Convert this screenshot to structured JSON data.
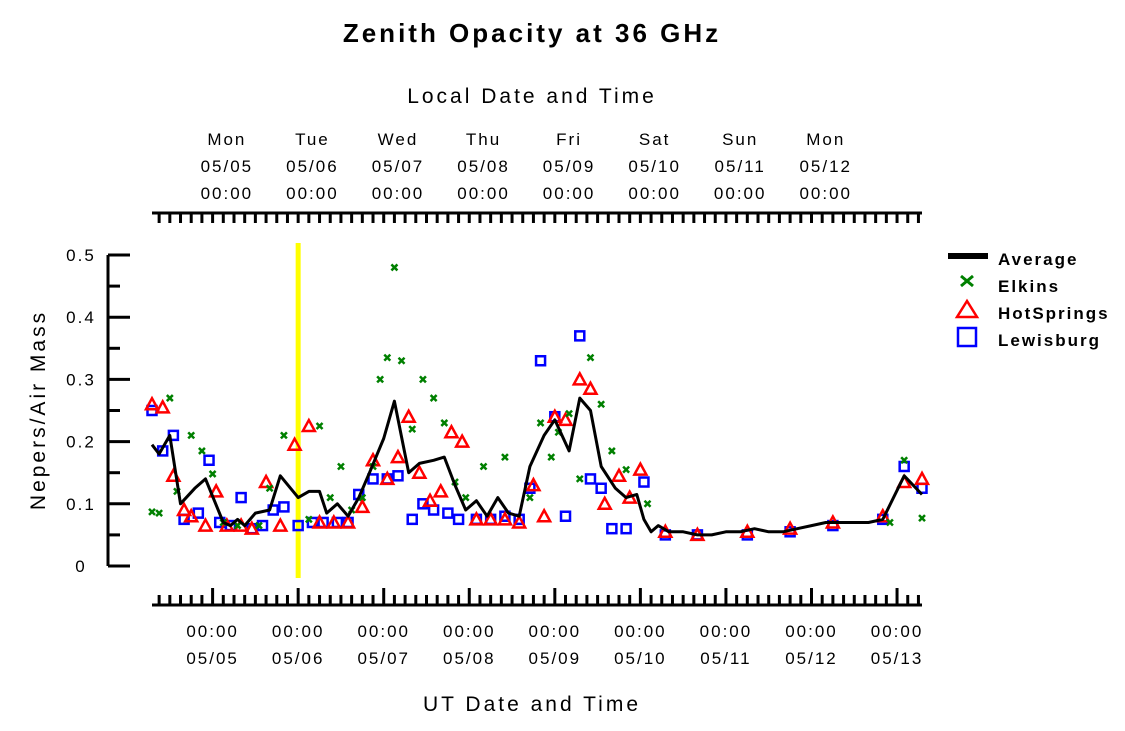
{
  "chart_data": {
    "type": "line",
    "title": "Zenith Opacity at 36 GHz",
    "top_axis_label": "Local Date and Time",
    "xlabel": "UT Date and Time",
    "ylabel": "Nepers/Air Mass",
    "ylim": [
      0,
      0.5
    ],
    "y_ticks": [
      "0",
      "0.1",
      "0.2",
      "0.3",
      "0.4",
      "0.5"
    ],
    "xlim_ut": [
      "2003-05-04T07:00",
      "2003-05-13T07:00"
    ],
    "top_ticks": [
      {
        "day": "Mon",
        "date": "05/05",
        "time": "00:00"
      },
      {
        "day": "Tue",
        "date": "05/06",
        "time": "00:00"
      },
      {
        "day": "Wed",
        "date": "05/07",
        "time": "00:00"
      },
      {
        "day": "Thu",
        "date": "05/08",
        "time": "00:00"
      },
      {
        "day": "Fri",
        "date": "05/09",
        "time": "00:00"
      },
      {
        "day": "Sat",
        "date": "05/10",
        "time": "00:00"
      },
      {
        "day": "Sun",
        "date": "05/11",
        "time": "00:00"
      },
      {
        "day": "Mon",
        "date": "05/12",
        "time": "00:00"
      }
    ],
    "bottom_ticks": [
      {
        "time": "00:00",
        "date": "05/05"
      },
      {
        "time": "00:00",
        "date": "05/06"
      },
      {
        "time": "00:00",
        "date": "05/07"
      },
      {
        "time": "00:00",
        "date": "05/08"
      },
      {
        "time": "00:00",
        "date": "05/09"
      },
      {
        "time": "00:00",
        "date": "05/10"
      },
      {
        "time": "00:00",
        "date": "05/11"
      },
      {
        "time": "00:00",
        "date": "05/12"
      },
      {
        "time": "00:00",
        "date": "05/13"
      }
    ],
    "marker_line": {
      "x": "2003-05-06T00:00",
      "color": "#ffff00"
    },
    "legend_placement": "right",
    "series": [
      {
        "name": "Average",
        "marker": "line",
        "color": "#000000",
        "points": [
          [
            "2003-05-04T07:00",
            0.195
          ],
          [
            "2003-05-04T09:00",
            0.18
          ],
          [
            "2003-05-04T12:00",
            0.21
          ],
          [
            "2003-05-04T15:00",
            0.1
          ],
          [
            "2003-05-04T19:00",
            0.125
          ],
          [
            "2003-05-04T22:00",
            0.14
          ],
          [
            "2003-05-05T03:00",
            0.07
          ],
          [
            "2003-05-05T05:00",
            0.065
          ],
          [
            "2003-05-05T07:00",
            0.075
          ],
          [
            "2003-05-05T09:00",
            0.065
          ],
          [
            "2003-05-05T12:00",
            0.085
          ],
          [
            "2003-05-05T16:00",
            0.09
          ],
          [
            "2003-05-05T19:00",
            0.145
          ],
          [
            "2003-05-06T00:00",
            0.11
          ],
          [
            "2003-05-06T03:00",
            0.12
          ],
          [
            "2003-05-06T06:00",
            0.12
          ],
          [
            "2003-05-06T08:00",
            0.085
          ],
          [
            "2003-05-06T11:00",
            0.1
          ],
          [
            "2003-05-06T14:00",
            0.08
          ],
          [
            "2003-05-06T17:00",
            0.11
          ],
          [
            "2003-05-06T20:00",
            0.15
          ],
          [
            "2003-05-07T00:00",
            0.205
          ],
          [
            "2003-05-07T03:00",
            0.265
          ],
          [
            "2003-05-07T07:00",
            0.15
          ],
          [
            "2003-05-07T10:00",
            0.165
          ],
          [
            "2003-05-07T14:00",
            0.17
          ],
          [
            "2003-05-07T17:00",
            0.175
          ],
          [
            "2003-05-07T20:00",
            0.13
          ],
          [
            "2003-05-07T23:00",
            0.09
          ],
          [
            "2003-05-08T02:00",
            0.105
          ],
          [
            "2003-05-08T05:00",
            0.08
          ],
          [
            "2003-05-08T08:00",
            0.11
          ],
          [
            "2003-05-08T11:00",
            0.085
          ],
          [
            "2003-05-08T14:00",
            0.08
          ],
          [
            "2003-05-08T17:00",
            0.16
          ],
          [
            "2003-05-08T21:00",
            0.21
          ],
          [
            "2003-05-09T00:00",
            0.235
          ],
          [
            "2003-05-09T04:00",
            0.185
          ],
          [
            "2003-05-09T07:00",
            0.27
          ],
          [
            "2003-05-09T10:00",
            0.25
          ],
          [
            "2003-05-09T13:00",
            0.16
          ],
          [
            "2003-05-09T17:00",
            0.125
          ],
          [
            "2003-05-09T20:00",
            0.11
          ],
          [
            "2003-05-09T23:00",
            0.115
          ],
          [
            "2003-05-10T01:00",
            0.075
          ],
          [
            "2003-05-10T03:00",
            0.055
          ],
          [
            "2003-05-10T05:00",
            0.065
          ],
          [
            "2003-05-10T08:00",
            0.055
          ],
          [
            "2003-05-10T12:00",
            0.055
          ],
          [
            "2003-05-10T16:00",
            0.05
          ],
          [
            "2003-05-10T20:00",
            0.05
          ],
          [
            "2003-05-11T00:00",
            0.055
          ],
          [
            "2003-05-11T04:00",
            0.055
          ],
          [
            "2003-05-11T08:00",
            0.06
          ],
          [
            "2003-05-11T12:00",
            0.055
          ],
          [
            "2003-05-11T16:00",
            0.055
          ],
          [
            "2003-05-11T20:00",
            0.06
          ],
          [
            "2003-05-12T00:00",
            0.065
          ],
          [
            "2003-05-12T04:00",
            0.07
          ],
          [
            "2003-05-12T08:00",
            0.07
          ],
          [
            "2003-05-12T12:00",
            0.07
          ],
          [
            "2003-05-12T16:00",
            0.07
          ],
          [
            "2003-05-12T20:00",
            0.075
          ],
          [
            "2003-05-13T02:00",
            0.145
          ],
          [
            "2003-05-13T07:00",
            0.115
          ]
        ]
      },
      {
        "name": "Elkins",
        "marker": "x",
        "color": "#008000",
        "points": [
          [
            "2003-05-04T07:00",
            0.087
          ],
          [
            "2003-05-04T09:00",
            0.085
          ],
          [
            "2003-05-04T12:00",
            0.27
          ],
          [
            "2003-05-04T14:00",
            0.12
          ],
          [
            "2003-05-04T18:00",
            0.21
          ],
          [
            "2003-05-04T21:00",
            0.185
          ],
          [
            "2003-05-05T00:00",
            0.148
          ],
          [
            "2003-05-05T03:00",
            0.07
          ],
          [
            "2003-05-05T07:00",
            0.065
          ],
          [
            "2003-05-05T13:00",
            0.065
          ],
          [
            "2003-05-05T16:00",
            0.125
          ],
          [
            "2003-05-05T20:00",
            0.21
          ],
          [
            "2003-05-06T03:00",
            0.075
          ],
          [
            "2003-05-06T06:00",
            0.225
          ],
          [
            "2003-05-06T09:00",
            0.11
          ],
          [
            "2003-05-06T12:00",
            0.16
          ],
          [
            "2003-05-06T15:00",
            0.09
          ],
          [
            "2003-05-06T18:00",
            0.11
          ],
          [
            "2003-05-06T21:00",
            0.16
          ],
          [
            "2003-05-06T23:00",
            0.3
          ],
          [
            "2003-05-07T01:00",
            0.335
          ],
          [
            "2003-05-07T03:00",
            0.48
          ],
          [
            "2003-05-07T05:00",
            0.33
          ],
          [
            "2003-05-07T08:00",
            0.22
          ],
          [
            "2003-05-07T11:00",
            0.3
          ],
          [
            "2003-05-07T14:00",
            0.27
          ],
          [
            "2003-05-07T17:00",
            0.23
          ],
          [
            "2003-05-07T20:00",
            0.135
          ],
          [
            "2003-05-07T23:00",
            0.11
          ],
          [
            "2003-05-08T04:00",
            0.16
          ],
          [
            "2003-05-08T10:00",
            0.175
          ],
          [
            "2003-05-08T17:00",
            0.11
          ],
          [
            "2003-05-08T20:00",
            0.23
          ],
          [
            "2003-05-08T23:00",
            0.175
          ],
          [
            "2003-05-09T01:00",
            0.215
          ],
          [
            "2003-05-09T04:00",
            0.245
          ],
          [
            "2003-05-09T07:00",
            0.14
          ],
          [
            "2003-05-09T10:00",
            0.335
          ],
          [
            "2003-05-09T13:00",
            0.26
          ],
          [
            "2003-05-09T16:00",
            0.185
          ],
          [
            "2003-05-09T20:00",
            0.155
          ],
          [
            "2003-05-10T02:00",
            0.1
          ],
          [
            "2003-05-12T22:00",
            0.07
          ],
          [
            "2003-05-13T02:00",
            0.17
          ],
          [
            "2003-05-13T07:00",
            0.077
          ]
        ]
      },
      {
        "name": "HotSprings",
        "marker": "triangle",
        "color": "#ff0000",
        "points": [
          [
            "2003-05-04T07:00",
            0.26
          ],
          [
            "2003-05-04T10:00",
            0.255
          ],
          [
            "2003-05-04T13:00",
            0.145
          ],
          [
            "2003-05-04T16:00",
            0.09
          ],
          [
            "2003-05-04T18:00",
            0.08
          ],
          [
            "2003-05-04T22:00",
            0.065
          ],
          [
            "2003-05-05T01:00",
            0.12
          ],
          [
            "2003-05-05T04:00",
            0.065
          ],
          [
            "2003-05-05T08:00",
            0.065
          ],
          [
            "2003-05-05T11:00",
            0.06
          ],
          [
            "2003-05-05T15:00",
            0.135
          ],
          [
            "2003-05-05T19:00",
            0.065
          ],
          [
            "2003-05-05T23:00",
            0.195
          ],
          [
            "2003-05-06T03:00",
            0.225
          ],
          [
            "2003-05-06T06:00",
            0.07
          ],
          [
            "2003-05-06T10:00",
            0.07
          ],
          [
            "2003-05-06T14:00",
            0.07
          ],
          [
            "2003-05-06T18:00",
            0.095
          ],
          [
            "2003-05-06T21:00",
            0.17
          ],
          [
            "2003-05-07T01:00",
            0.14
          ],
          [
            "2003-05-07T04:00",
            0.175
          ],
          [
            "2003-05-07T07:00",
            0.24
          ],
          [
            "2003-05-07T10:00",
            0.15
          ],
          [
            "2003-05-07T13:00",
            0.105
          ],
          [
            "2003-05-07T16:00",
            0.12
          ],
          [
            "2003-05-07T19:00",
            0.215
          ],
          [
            "2003-05-07T22:00",
            0.2
          ],
          [
            "2003-05-08T02:00",
            0.075
          ],
          [
            "2003-05-08T06:00",
            0.075
          ],
          [
            "2003-05-08T10:00",
            0.075
          ],
          [
            "2003-05-08T14:00",
            0.07
          ],
          [
            "2003-05-08T18:00",
            0.13
          ],
          [
            "2003-05-08T21:00",
            0.08
          ],
          [
            "2003-05-09T00:00",
            0.24
          ],
          [
            "2003-05-09T03:00",
            0.235
          ],
          [
            "2003-05-09T07:00",
            0.3
          ],
          [
            "2003-05-09T10:00",
            0.285
          ],
          [
            "2003-05-09T14:00",
            0.1
          ],
          [
            "2003-05-09T18:00",
            0.145
          ],
          [
            "2003-05-09T21:00",
            0.11
          ],
          [
            "2003-05-10T00:00",
            0.155
          ],
          [
            "2003-05-10T07:00",
            0.055
          ],
          [
            "2003-05-10T16:00",
            0.05
          ],
          [
            "2003-05-11T06:00",
            0.055
          ],
          [
            "2003-05-11T18:00",
            0.06
          ],
          [
            "2003-05-12T06:00",
            0.07
          ],
          [
            "2003-05-12T20:00",
            0.08
          ],
          [
            "2003-05-13T02:00",
            0.135
          ],
          [
            "2003-05-13T07:00",
            0.14
          ]
        ]
      },
      {
        "name": "Lewisburg",
        "marker": "square",
        "color": "#0000ff",
        "points": [
          [
            "2003-05-04T07:00",
            0.25
          ],
          [
            "2003-05-04T10:00",
            0.185
          ],
          [
            "2003-05-04T13:00",
            0.21
          ],
          [
            "2003-05-04T16:00",
            0.075
          ],
          [
            "2003-05-04T20:00",
            0.085
          ],
          [
            "2003-05-04T23:00",
            0.17
          ],
          [
            "2003-05-05T02:00",
            0.07
          ],
          [
            "2003-05-05T05:00",
            0.065
          ],
          [
            "2003-05-05T08:00",
            0.11
          ],
          [
            "2003-05-05T11:00",
            0.06
          ],
          [
            "2003-05-05T14:00",
            0.065
          ],
          [
            "2003-05-05T17:00",
            0.09
          ],
          [
            "2003-05-05T20:00",
            0.095
          ],
          [
            "2003-05-06T00:00",
            0.065
          ],
          [
            "2003-05-06T04:00",
            0.07
          ],
          [
            "2003-05-06T07:00",
            0.07
          ],
          [
            "2003-05-06T11:00",
            0.07
          ],
          [
            "2003-05-06T14:00",
            0.07
          ],
          [
            "2003-05-06T17:00",
            0.115
          ],
          [
            "2003-05-06T21:00",
            0.14
          ],
          [
            "2003-05-07T01:00",
            0.14
          ],
          [
            "2003-05-07T04:00",
            0.145
          ],
          [
            "2003-05-07T08:00",
            0.075
          ],
          [
            "2003-05-07T11:00",
            0.1
          ],
          [
            "2003-05-07T14:00",
            0.09
          ],
          [
            "2003-05-07T18:00",
            0.085
          ],
          [
            "2003-05-07T21:00",
            0.075
          ],
          [
            "2003-05-08T02:00",
            0.075
          ],
          [
            "2003-05-08T06:00",
            0.075
          ],
          [
            "2003-05-08T10:00",
            0.08
          ],
          [
            "2003-05-08T14:00",
            0.075
          ],
          [
            "2003-05-08T17:00",
            0.125
          ],
          [
            "2003-05-08T20:00",
            0.33
          ],
          [
            "2003-05-09T00:00",
            0.24
          ],
          [
            "2003-05-09T03:00",
            0.08
          ],
          [
            "2003-05-09T07:00",
            0.37
          ],
          [
            "2003-05-09T10:00",
            0.14
          ],
          [
            "2003-05-09T13:00",
            0.125
          ],
          [
            "2003-05-09T16:00",
            0.06
          ],
          [
            "2003-05-09T20:00",
            0.06
          ],
          [
            "2003-05-10T01:00",
            0.135
          ],
          [
            "2003-05-10T07:00",
            0.05
          ],
          [
            "2003-05-10T16:00",
            0.05
          ],
          [
            "2003-05-11T06:00",
            0.05
          ],
          [
            "2003-05-11T18:00",
            0.055
          ],
          [
            "2003-05-12T06:00",
            0.065
          ],
          [
            "2003-05-12T20:00",
            0.075
          ],
          [
            "2003-05-13T02:00",
            0.16
          ],
          [
            "2003-05-13T07:00",
            0.125
          ]
        ]
      }
    ]
  }
}
